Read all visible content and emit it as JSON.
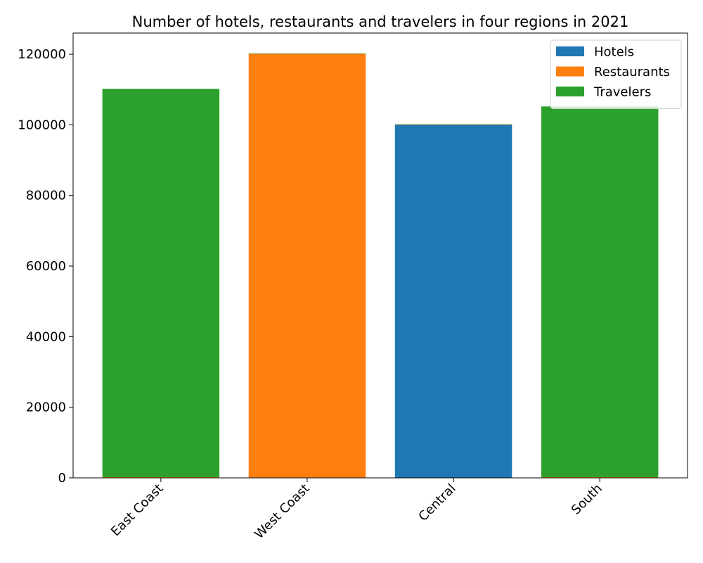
{
  "chart_data": {
    "type": "bar",
    "stacked": true,
    "title": "Number of hotels, restaurants and travelers in four regions in 2021",
    "xlabel": "",
    "ylabel": "",
    "categories": [
      "East Coast",
      "West Coast",
      "Central",
      "South"
    ],
    "series": [
      {
        "name": "Hotels",
        "color": "#1f77b4",
        "values": [
          100,
          120,
          100000,
          105
        ]
      },
      {
        "name": "Restaurants",
        "color": "#ff7f0e",
        "values": [
          110,
          120000,
          100,
          105
        ]
      },
      {
        "name": "Travelers",
        "color": "#2ca02c",
        "values": [
          110000,
          120,
          100,
          105000
        ]
      }
    ],
    "ylim": [
      0,
      126000
    ],
    "yticks": [
      0,
      20000,
      40000,
      60000,
      80000,
      100000,
      120000
    ],
    "tick_label_rotation": 45,
    "grid": false,
    "legend_position": "top-right"
  }
}
